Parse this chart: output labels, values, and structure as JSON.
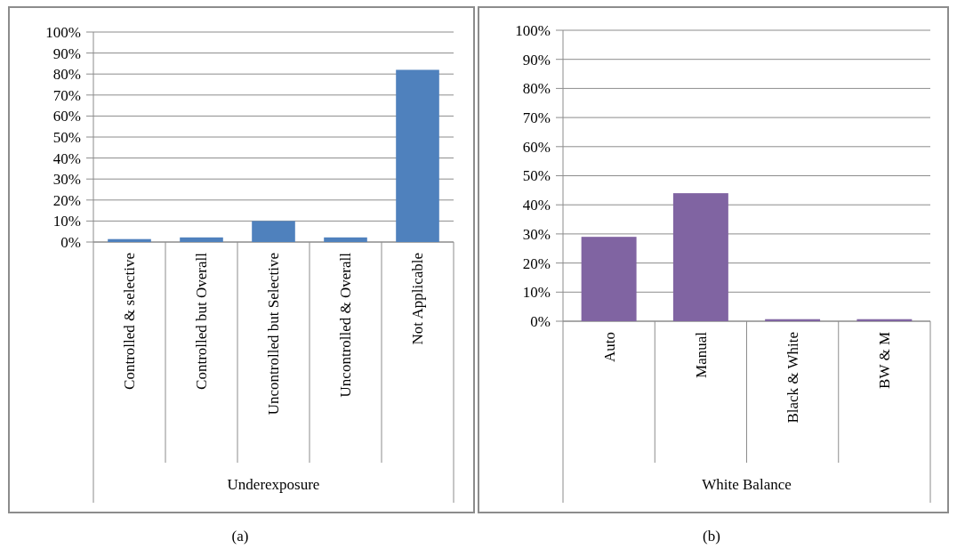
{
  "chart_data": [
    {
      "type": "bar",
      "xlabel": "Underexposure",
      "categories": [
        "Controlled & selective",
        "Controlled but Overall",
        "Uncontrolled but Selective",
        "Uncontrolled & Overall",
        "Not Applicable"
      ],
      "values": [
        1.4,
        2.2,
        10,
        2.2,
        82
      ],
      "color": "#4f81bd",
      "ylim": [
        0,
        100
      ],
      "yticks": [
        {
          "value": 0,
          "label": "0%"
        },
        {
          "value": 10,
          "label": "10%"
        },
        {
          "value": 20,
          "label": "20%"
        },
        {
          "value": 30,
          "label": "30%"
        },
        {
          "value": 40,
          "label": "40%"
        },
        {
          "value": 50,
          "label": "50%"
        },
        {
          "value": 60,
          "label": "60%"
        },
        {
          "value": 70,
          "label": "70%"
        },
        {
          "value": 80,
          "label": "80%"
        },
        {
          "value": 90,
          "label": "90%"
        },
        {
          "value": 100,
          "label": "100%"
        }
      ],
      "grid": "y",
      "annotations": [
        "(a)"
      ]
    },
    {
      "type": "bar",
      "xlabel": "White Balance",
      "categories": [
        "Auto",
        "Manual",
        "Black & White",
        "BW & M"
      ],
      "values": [
        29,
        44,
        0.7,
        0.7
      ],
      "color": "#8064a2",
      "ylim": [
        0,
        100
      ],
      "yticks": [
        {
          "value": 0,
          "label": "0%"
        },
        {
          "value": 10,
          "label": "10%"
        },
        {
          "value": 20,
          "label": "20%"
        },
        {
          "value": 30,
          "label": "30%"
        },
        {
          "value": 40,
          "label": "40%"
        },
        {
          "value": 50,
          "label": "50%"
        },
        {
          "value": 60,
          "label": "60%"
        },
        {
          "value": 70,
          "label": "70%"
        },
        {
          "value": 80,
          "label": "80%"
        },
        {
          "value": 90,
          "label": "90%"
        },
        {
          "value": 100,
          "label": "100%"
        }
      ],
      "grid": "y",
      "annotations": [
        "(b)"
      ]
    }
  ]
}
